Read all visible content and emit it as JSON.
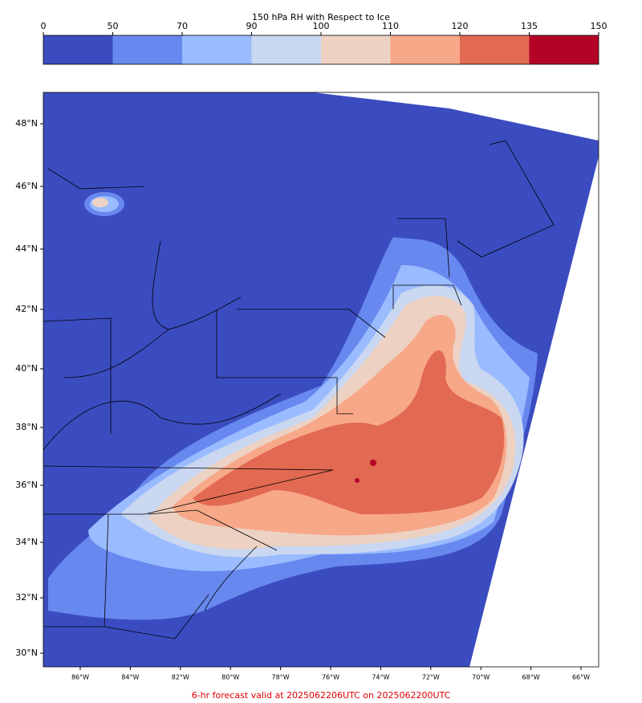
{
  "colorbar": {
    "title": "150 hPa RH with Respect to Ice",
    "ticks": [
      0,
      50,
      70,
      90,
      100,
      110,
      120,
      135,
      150
    ],
    "colors": [
      "#3b4cc0",
      "#6788ee",
      "#9abbff",
      "#c9d7f0",
      "#edd1c2",
      "#f7a889",
      "#e26952",
      "#b40426"
    ]
  },
  "map": {
    "lat_labels": [
      "48°N",
      "46°N",
      "44°N",
      "42°N",
      "40°N",
      "38°N",
      "36°N",
      "34°N",
      "32°N",
      "30°N"
    ],
    "lon_labels": [
      "86°W",
      "84°W",
      "82°W",
      "80°W",
      "78°W",
      "76°W",
      "74°W",
      "72°W",
      "70°W",
      "68°W",
      "66°W"
    ]
  },
  "footer": "6-hr forecast valid at 2025062206UTC on 2025062200UTC"
}
